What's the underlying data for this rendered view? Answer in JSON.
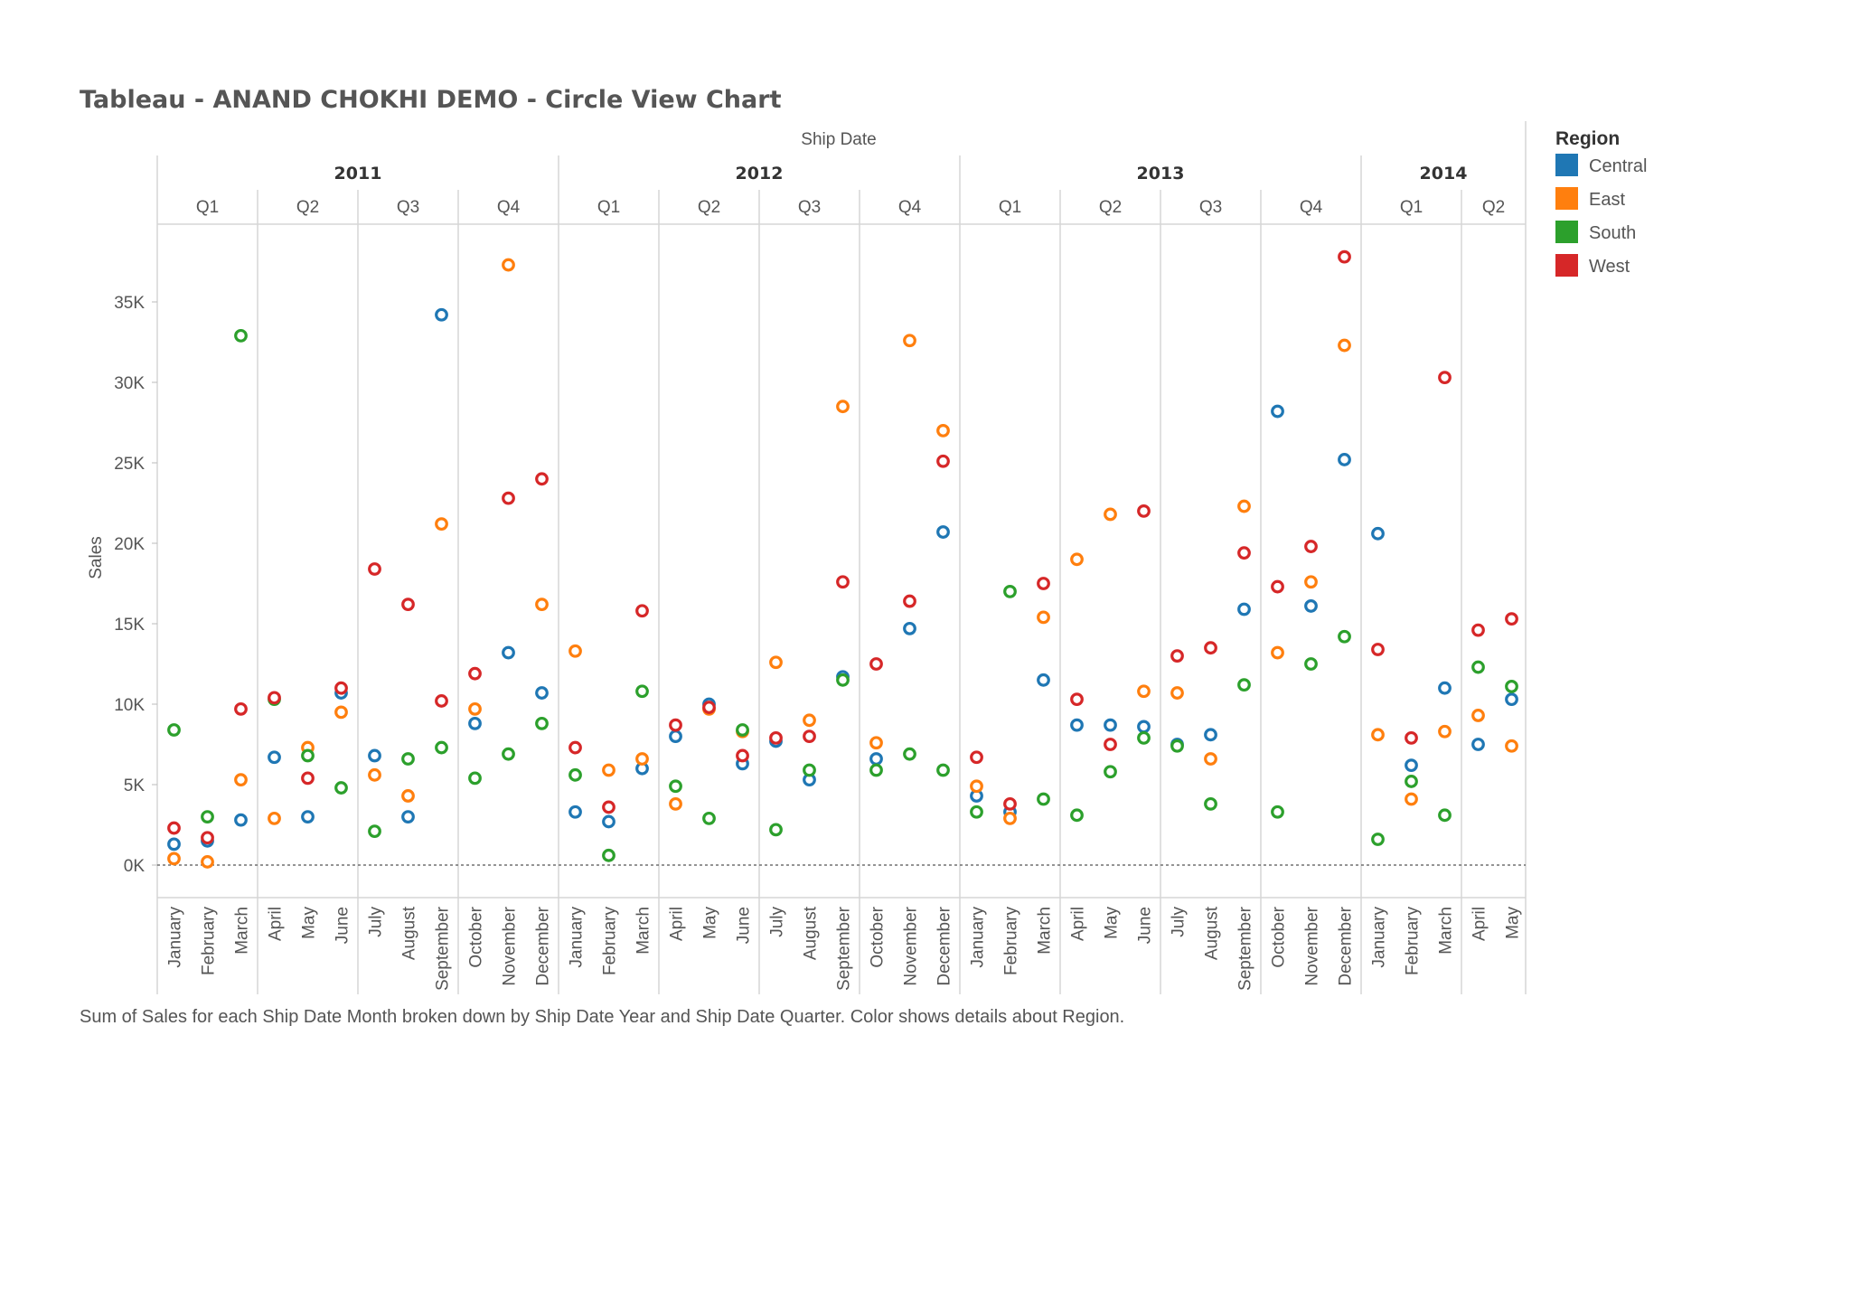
{
  "chart_data": {
    "type": "scatter",
    "mark": "circle",
    "title": "Tableau - ANAND CHOKHI DEMO - Circle View Chart",
    "column_field": "Ship Date",
    "ylabel": "Sales",
    "ylim": [
      -2000,
      40000
    ],
    "y_ticks": [
      0,
      5000,
      10000,
      15000,
      20000,
      25000,
      30000,
      35000
    ],
    "y_tick_labels": [
      "0K",
      "5K",
      "10K",
      "15K",
      "20K",
      "25K",
      "30K",
      "35K"
    ],
    "years": [
      {
        "label": "2011",
        "quarters": [
          {
            "label": "Q1",
            "months": [
              "January",
              "February",
              "March"
            ]
          },
          {
            "label": "Q2",
            "months": [
              "April",
              "May",
              "June"
            ]
          },
          {
            "label": "Q3",
            "months": [
              "July",
              "August",
              "September"
            ]
          },
          {
            "label": "Q4",
            "months": [
              "October",
              "November",
              "December"
            ]
          }
        ]
      },
      {
        "label": "2012",
        "quarters": [
          {
            "label": "Q1",
            "months": [
              "January",
              "February",
              "March"
            ]
          },
          {
            "label": "Q2",
            "months": [
              "April",
              "May",
              "June"
            ]
          },
          {
            "label": "Q3",
            "months": [
              "July",
              "August",
              "September"
            ]
          },
          {
            "label": "Q4",
            "months": [
              "October",
              "November",
              "December"
            ]
          }
        ]
      },
      {
        "label": "2013",
        "quarters": [
          {
            "label": "Q1",
            "months": [
              "January",
              "February",
              "March"
            ]
          },
          {
            "label": "Q2",
            "months": [
              "April",
              "May",
              "June"
            ]
          },
          {
            "label": "Q3",
            "months": [
              "July",
              "August",
              "September"
            ]
          },
          {
            "label": "Q4",
            "months": [
              "October",
              "November",
              "December"
            ]
          }
        ]
      },
      {
        "label": "2014",
        "quarters": [
          {
            "label": "Q1",
            "months": [
              "January",
              "February",
              "March"
            ]
          },
          {
            "label": "Q2",
            "months": [
              "April",
              "May"
            ]
          }
        ]
      }
    ],
    "legend": {
      "title": "Region",
      "position": "right"
    },
    "series": [
      {
        "name": "Central",
        "color": "#1f77b4",
        "values": [
          1300,
          1500,
          2800,
          6700,
          3000,
          10700,
          6800,
          3000,
          34200,
          8800,
          13200,
          10700,
          3300,
          2700,
          6000,
          8000,
          10000,
          6300,
          7700,
          5300,
          11700,
          6600,
          14700,
          20700,
          4300,
          3300,
          11500,
          8700,
          8700,
          8600,
          7500,
          8100,
          15900,
          28200,
          16100,
          25200,
          20600,
          6200,
          11000,
          7500,
          10300
        ]
      },
      {
        "name": "East",
        "color": "#ff7f0e",
        "values": [
          400,
          200,
          5300,
          2900,
          7300,
          9500,
          5600,
          4300,
          21200,
          9700,
          37300,
          16200,
          13300,
          5900,
          6600,
          3800,
          9700,
          8300,
          12600,
          9000,
          28500,
          7600,
          32600,
          27000,
          4900,
          2900,
          15400,
          19000,
          21800,
          10800,
          10700,
          6600,
          22300,
          13200,
          17600,
          32300,
          8100,
          4100,
          8300,
          9300,
          7400
        ]
      },
      {
        "name": "South",
        "color": "#2ca02c",
        "values": [
          8400,
          3000,
          32900,
          10300,
          6800,
          4800,
          2100,
          6600,
          7300,
          5400,
          6900,
          8800,
          5600,
          600,
          10800,
          4900,
          2900,
          8400,
          2200,
          5900,
          11500,
          5900,
          6900,
          5900,
          3300,
          17000,
          4100,
          3100,
          5800,
          7900,
          7400,
          3800,
          11200,
          3300,
          12500,
          14200,
          1600,
          5200,
          3100,
          12300,
          11100
        ]
      },
      {
        "name": "West",
        "color": "#d62728",
        "values": [
          2300,
          1700,
          9700,
          10400,
          5400,
          11000,
          18400,
          16200,
          10200,
          11900,
          22800,
          24000,
          7300,
          3600,
          15800,
          8700,
          9800,
          6800,
          7900,
          8000,
          17600,
          12500,
          16400,
          25100,
          6700,
          3800,
          17500,
          10300,
          7500,
          22000,
          13000,
          13500,
          19400,
          17300,
          19800,
          37800,
          13400,
          7900,
          30300,
          14600,
          15300
        ]
      }
    ],
    "caption": "Sum of Sales for each Ship Date Month broken down by Ship Date Year and Ship Date Quarter.  Color shows details about Region."
  }
}
